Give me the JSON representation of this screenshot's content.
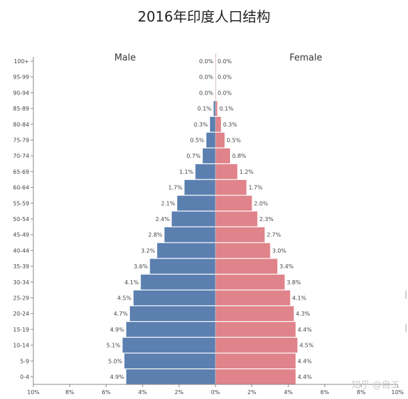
{
  "chart_data": {
    "type": "bar",
    "title": "2016年印度人口结构",
    "categories": [
      "0-4",
      "5-9",
      "10-14",
      "15-19",
      "20-24",
      "25-29",
      "30-34",
      "35-39",
      "40-44",
      "45-49",
      "50-54",
      "55-59",
      "60-64",
      "65-69",
      "70-74",
      "75-79",
      "80-84",
      "85-89",
      "90-94",
      "95-99",
      "100+"
    ],
    "series": [
      {
        "name": "Male",
        "color": "#5b80b0",
        "values": [
          4.9,
          5.0,
          5.1,
          4.9,
          4.7,
          4.5,
          4.1,
          3.6,
          3.2,
          2.8,
          2.4,
          2.1,
          1.7,
          1.1,
          0.7,
          0.5,
          0.3,
          0.1,
          0.0,
          0.0,
          0.0
        ],
        "labels": [
          "4.9%",
          "5.0%",
          "5.1%",
          "4.9%",
          "4.7%",
          "4.5%",
          "4.1%",
          "3.6%",
          "3.2%",
          "2.8%",
          "2.4%",
          "2.1%",
          "1.7%",
          "1.1%",
          "0.7%",
          "0.5%",
          "0.3%",
          "0.1%",
          "0.0%",
          "0.0%",
          "0.0%"
        ]
      },
      {
        "name": "Female",
        "color": "#e0838a",
        "values": [
          4.4,
          4.4,
          4.5,
          4.4,
          4.3,
          4.1,
          3.8,
          3.4,
          3.0,
          2.7,
          2.3,
          2.0,
          1.7,
          1.2,
          0.8,
          0.5,
          0.3,
          0.1,
          0.0,
          0.0,
          0.0
        ],
        "labels": [
          "4.4%",
          "4.4%",
          "4.5%",
          "4.4%",
          "4.3%",
          "4.1%",
          "3.8%",
          "3.4%",
          "3.0%",
          "2.7%",
          "2.3%",
          "2.0%",
          "1.7%",
          "1.2%",
          "0.8%",
          "0.5%",
          "0.3%",
          "0.1%",
          "0.0%",
          "0.0%",
          "0.0%"
        ]
      }
    ],
    "x_ticks": [
      "10%",
      "8%",
      "6%",
      "4%",
      "2%",
      "0%",
      "2%",
      "4%",
      "6%",
      "8%",
      "10%"
    ],
    "xlim": [
      -10,
      10
    ],
    "xlabel": "",
    "ylabel": "",
    "grid": false
  },
  "watermark": "知乎 @自工"
}
